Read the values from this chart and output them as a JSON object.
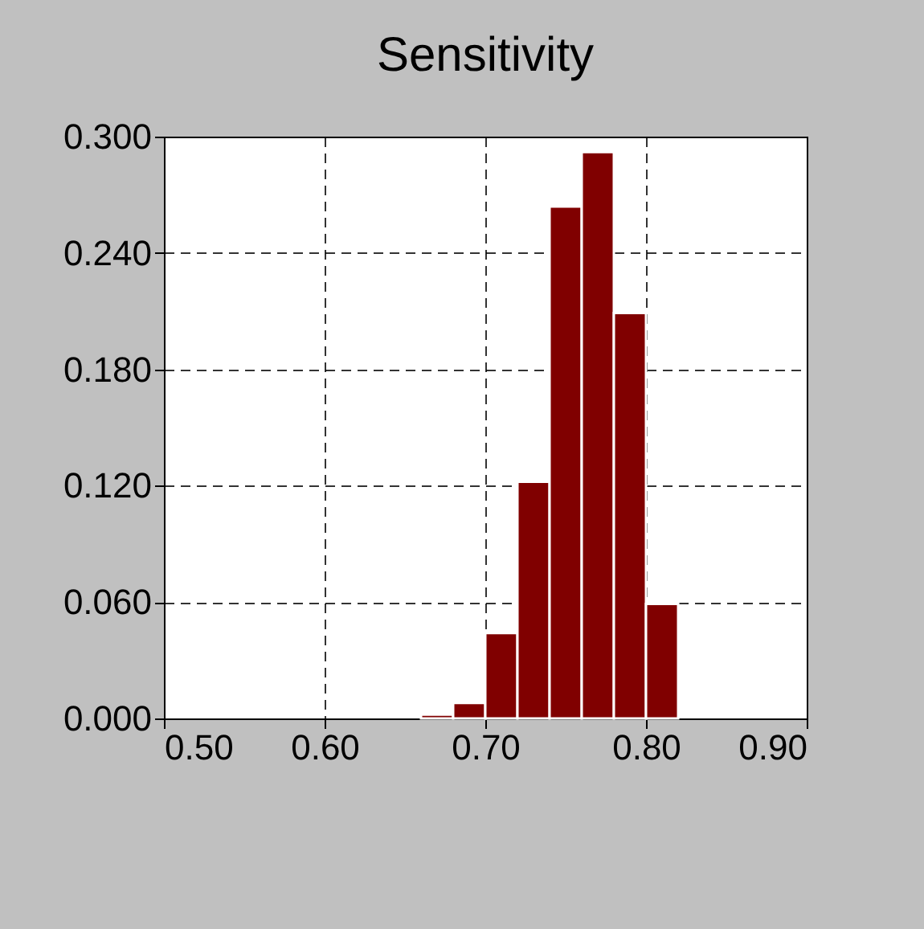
{
  "chart_data": {
    "type": "histogram",
    "title": "Sensitivity",
    "bins": [
      0.66,
      0.68,
      0.7,
      0.72,
      0.74,
      0.76,
      0.78,
      0.8,
      0.82
    ],
    "values": [
      0.002,
      0.008,
      0.044,
      0.122,
      0.264,
      0.292,
      0.209,
      0.059
    ],
    "color": "#800000",
    "xlim": [
      0.5,
      0.9
    ],
    "xticks": [
      {
        "value": 0.5,
        "label": "0.50"
      },
      {
        "value": 0.6,
        "label": "0.60"
      },
      {
        "value": 0.7,
        "label": "0.70"
      },
      {
        "value": 0.8,
        "label": "0.80"
      },
      {
        "value": 0.9,
        "label": "0.90"
      }
    ],
    "ylim": [
      0,
      0.3
    ],
    "yticks": [
      {
        "value": 0,
        "label": "0.000"
      },
      {
        "value": 0.06,
        "label": "0.060"
      },
      {
        "value": 0.12,
        "label": "0.120"
      },
      {
        "value": 0.18,
        "label": "0.180"
      },
      {
        "value": 0.24,
        "label": "0.240"
      },
      {
        "value": 0.3,
        "label": "0.300"
      }
    ],
    "grid": true
  }
}
